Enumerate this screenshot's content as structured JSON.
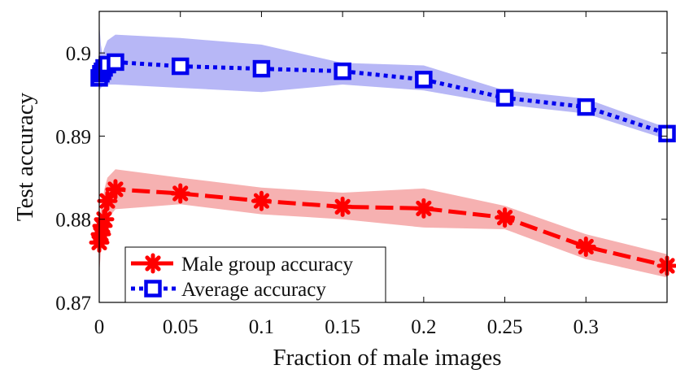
{
  "chart_data": {
    "type": "line",
    "title": "",
    "xlabel": "Fraction of male images",
    "ylabel": "Test accuracy",
    "xlim": [
      0,
      0.35
    ],
    "ylim": [
      0.87,
      0.905
    ],
    "x_ticks": [
      0,
      0.05,
      0.1,
      0.15,
      0.2,
      0.25,
      0.3
    ],
    "x_tick_labels": [
      "0",
      "0.05",
      "0.1",
      "0.15",
      "0.2",
      "0.25",
      "0.3"
    ],
    "y_ticks": [
      0.87,
      0.88,
      0.89,
      0.9
    ],
    "y_tick_labels": [
      "0.87",
      "0.88",
      "0.89",
      "0.9"
    ],
    "grid": false,
    "legend_position": "bottom-left",
    "series": [
      {
        "name": "Male group accuracy",
        "color": "#ff0000",
        "band_color": "#f4a3a3",
        "line_style": "dashed",
        "marker": "asterisk",
        "x": [
          0,
          0.001,
          0.002,
          0.003,
          0.005,
          0.01,
          0.05,
          0.1,
          0.15,
          0.2,
          0.25,
          0.3,
          0.35
        ],
        "y": [
          0.8772,
          0.8782,
          0.8792,
          0.88,
          0.8822,
          0.8836,
          0.8831,
          0.8822,
          0.8815,
          0.8813,
          0.8802,
          0.8767,
          0.8744
        ],
        "lower": [
          0.8735,
          0.876,
          0.8775,
          0.8785,
          0.88,
          0.8812,
          0.8818,
          0.8806,
          0.88,
          0.879,
          0.8788,
          0.8752,
          0.873
        ],
        "upper": [
          0.88,
          0.8812,
          0.882,
          0.8835,
          0.885,
          0.886,
          0.885,
          0.8838,
          0.8832,
          0.8837,
          0.8816,
          0.8782,
          0.8758
        ]
      },
      {
        "name": "Average accuracy",
        "color": "#0000ee",
        "band_color": "#aaaaf5",
        "line_style": "dotted",
        "marker": "square",
        "x": [
          0,
          0.001,
          0.002,
          0.003,
          0.005,
          0.01,
          0.05,
          0.1,
          0.15,
          0.2,
          0.25,
          0.3,
          0.35
        ],
        "y": [
          0.897,
          0.8975,
          0.8978,
          0.8982,
          0.8986,
          0.8989,
          0.8984,
          0.8981,
          0.8978,
          0.8968,
          0.8946,
          0.8935,
          0.8903
        ],
        "lower": [
          0.8955,
          0.8958,
          0.896,
          0.8962,
          0.8962,
          0.8962,
          0.8958,
          0.8953,
          0.8962,
          0.8955,
          0.8938,
          0.8927,
          0.8896
        ],
        "upper": [
          0.9035,
          0.901,
          0.8998,
          0.9005,
          0.9015,
          0.9022,
          0.9018,
          0.901,
          0.8988,
          0.8985,
          0.8955,
          0.8945,
          0.891
        ]
      }
    ]
  }
}
